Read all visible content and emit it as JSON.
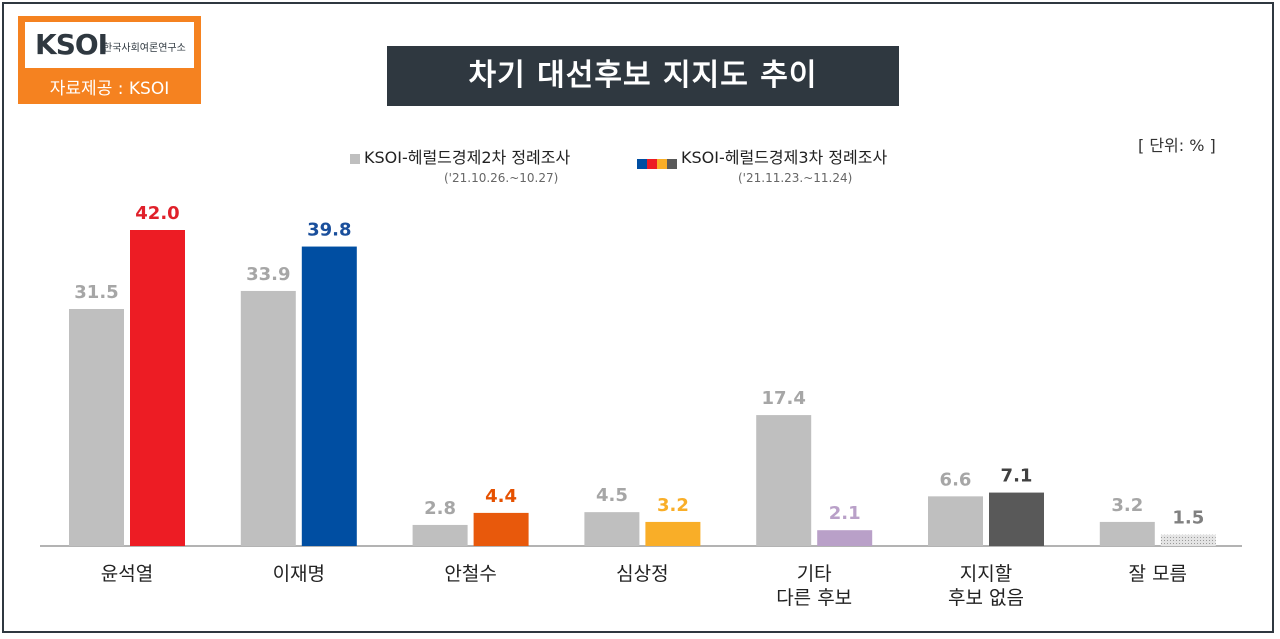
{
  "header": {
    "logo_text": "KSOI",
    "logo_subtitle": "한국사회여론연구소",
    "source_label": "자료제공 : KSOI",
    "title": "차기 대선후보 지지도 추이",
    "unit": "[ 단위: % ]"
  },
  "legend": {
    "series1_label": "KSOI-헤럴드경제2차 정례조사",
    "series1_date": "('21.10.26.~10.27)",
    "series2_label": "KSOI-헤럴드경제3차 정례조사",
    "series2_date": "('21.11.23.~11.24)"
  },
  "colors": {
    "previous": "#bfbfbf",
    "latest": [
      "#ed1c24",
      "#004ea2",
      "#e8590c",
      "#f9ae28",
      "#b9a0c8",
      "#595959",
      "#d0d0d0"
    ],
    "label_latest": [
      "#e0202a",
      "#1a4f9c",
      "#e65100",
      "#f9ae28",
      "#b9a0c8",
      "#404040",
      "#808080"
    ],
    "label_previous": "#a6a6a6",
    "title_bg": "#2f3840",
    "logo_bg": "#f58220"
  },
  "chart_data": {
    "type": "bar",
    "categories": [
      [
        "윤석열"
      ],
      [
        "이재명"
      ],
      [
        "안철수"
      ],
      [
        "심상정"
      ],
      [
        "기타",
        "다른 후보"
      ],
      [
        "지지할",
        "후보 없음"
      ],
      [
        "잘 모름"
      ]
    ],
    "series": [
      {
        "name": "KSOI-헤럴드경제2차 정례조사",
        "values": [
          31.5,
          33.9,
          2.8,
          4.5,
          17.4,
          6.6,
          3.2
        ]
      },
      {
        "name": "KSOI-헤럴드경제3차 정례조사",
        "values": [
          42.0,
          39.8,
          4.4,
          3.2,
          2.1,
          7.1,
          1.5
        ]
      }
    ],
    "value_labels": [
      [
        "31.5",
        "33.9",
        "2.8",
        "4.5",
        "17.4",
        "6.6",
        "3.2"
      ],
      [
        "42.0",
        "39.8",
        "4.4",
        "3.2",
        "2.1",
        "7.1",
        "1.5"
      ]
    ],
    "title": "차기 대선후보 지지도 추이",
    "unit": "%",
    "ylim": [
      0,
      42
    ],
    "grid": false,
    "legend_position": "top"
  }
}
